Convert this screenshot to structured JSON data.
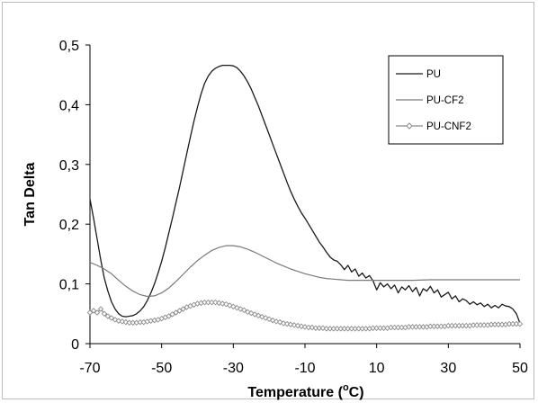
{
  "chart_data": {
    "type": "line",
    "xlabel": "Temperature",
    "xlabel_unit": "C",
    "xlabel_unit_sup": "o",
    "ylabel": "Tan Delta",
    "xlim": [
      -70,
      50
    ],
    "ylim": [
      0,
      0.5
    ],
    "x_ticks": [
      "-70",
      "-50",
      "-30",
      "-10",
      "10",
      "30",
      "50"
    ],
    "x_tick_values": [
      -70,
      -50,
      -30,
      -10,
      10,
      30,
      50
    ],
    "y_ticks": [
      "0",
      "0,1",
      "0,2",
      "0,3",
      "0,4",
      "0,5"
    ],
    "y_tick_values": [
      0,
      0.1,
      0.2,
      0.3,
      0.4,
      0.5
    ],
    "grid": false,
    "legend_position": "top-right",
    "series": [
      {
        "name": "PU",
        "color": "#1a1a1a",
        "marker": "none",
        "x": [
          -70,
          -69,
          -68,
          -67,
          -66,
          -65,
          -64,
          -63,
          -62,
          -61,
          -60,
          -59,
          -58,
          -57,
          -56,
          -55,
          -54,
          -53,
          -52,
          -51,
          -50,
          -49,
          -48,
          -47,
          -46,
          -45,
          -44,
          -43,
          -42,
          -41,
          -40,
          -39,
          -38,
          -37,
          -36,
          -35,
          -34,
          -33,
          -32,
          -31,
          -30,
          -29,
          -28,
          -27,
          -26,
          -25,
          -24,
          -23,
          -22,
          -21,
          -20,
          -19,
          -18,
          -17,
          -16,
          -15,
          -14,
          -13,
          -12,
          -11,
          -10,
          -9,
          -8,
          -7,
          -6,
          -5,
          -4,
          -3,
          -2,
          -1,
          0,
          1,
          2,
          3,
          4,
          5,
          6,
          7,
          8,
          9,
          10,
          11,
          12,
          13,
          14,
          15,
          16,
          17,
          18,
          19,
          20,
          21,
          22,
          23,
          24,
          25,
          26,
          27,
          28,
          29,
          30,
          31,
          32,
          33,
          34,
          35,
          36,
          37,
          38,
          39,
          40,
          41,
          42,
          43,
          44,
          45,
          46,
          47,
          48,
          49,
          50
        ],
        "y": [
          0.242,
          0.21,
          0.175,
          0.14,
          0.11,
          0.088,
          0.07,
          0.058,
          0.05,
          0.046,
          0.045,
          0.046,
          0.047,
          0.05,
          0.055,
          0.062,
          0.072,
          0.085,
          0.1,
          0.118,
          0.138,
          0.16,
          0.185,
          0.21,
          0.236,
          0.262,
          0.29,
          0.318,
          0.345,
          0.372,
          0.396,
          0.418,
          0.436,
          0.448,
          0.456,
          0.461,
          0.464,
          0.466,
          0.466,
          0.466,
          0.465,
          0.462,
          0.456,
          0.448,
          0.438,
          0.426,
          0.412,
          0.398,
          0.382,
          0.366,
          0.35,
          0.334,
          0.318,
          0.302,
          0.286,
          0.27,
          0.255,
          0.242,
          0.23,
          0.219,
          0.21,
          0.2,
          0.19,
          0.18,
          0.17,
          0.162,
          0.153,
          0.145,
          0.14,
          0.138,
          0.132,
          0.124,
          0.131,
          0.12,
          0.125,
          0.113,
          0.118,
          0.11,
          0.114,
          0.105,
          0.09,
          0.102,
          0.095,
          0.1,
          0.092,
          0.098,
          0.085,
          0.095,
          0.09,
          0.097,
          0.087,
          0.094,
          0.08,
          0.092,
          0.088,
          0.096,
          0.085,
          0.09,
          0.078,
          0.082,
          0.086,
          0.075,
          0.08,
          0.07,
          0.075,
          0.072,
          0.066,
          0.07,
          0.065,
          0.068,
          0.062,
          0.066,
          0.06,
          0.064,
          0.06,
          0.066,
          0.063,
          0.062,
          0.058,
          0.05,
          0.034
        ]
      },
      {
        "name": "PU-CF2",
        "color": "#7a7a7a",
        "marker": "none",
        "x": [
          -70,
          -68,
          -66,
          -64,
          -62,
          -60,
          -58,
          -56,
          -54,
          -52,
          -50,
          -48,
          -46,
          -44,
          -42,
          -40,
          -38,
          -36,
          -34,
          -32,
          -30,
          -28,
          -26,
          -24,
          -22,
          -20,
          -18,
          -16,
          -14,
          -12,
          -10,
          -8,
          -6,
          -4,
          -2,
          0,
          2,
          4,
          6,
          8,
          10,
          15,
          20,
          25,
          30,
          35,
          40,
          45,
          50
        ],
        "y": [
          0.136,
          0.131,
          0.125,
          0.117,
          0.106,
          0.096,
          0.088,
          0.082,
          0.079,
          0.08,
          0.085,
          0.093,
          0.104,
          0.116,
          0.128,
          0.139,
          0.148,
          0.156,
          0.161,
          0.164,
          0.164,
          0.162,
          0.158,
          0.153,
          0.147,
          0.141,
          0.135,
          0.13,
          0.125,
          0.121,
          0.117,
          0.114,
          0.111,
          0.109,
          0.108,
          0.107,
          0.106,
          0.106,
          0.106,
          0.106,
          0.106,
          0.106,
          0.106,
          0.107,
          0.107,
          0.107,
          0.107,
          0.107,
          0.107
        ]
      },
      {
        "name": "PU-CNF2",
        "color": "#8a8a8a",
        "marker": "diamond",
        "x": [
          -70,
          -69,
          -68,
          -67,
          -66,
          -65,
          -64,
          -63,
          -62,
          -61,
          -60,
          -59,
          -58,
          -57,
          -56,
          -55,
          -54,
          -53,
          -52,
          -51,
          -50,
          -49,
          -48,
          -47,
          -46,
          -45,
          -44,
          -43,
          -42,
          -41,
          -40,
          -39,
          -38,
          -37,
          -36,
          -35,
          -34,
          -33,
          -32,
          -31,
          -30,
          -29,
          -28,
          -27,
          -26,
          -25,
          -24,
          -23,
          -22,
          -21,
          -20,
          -19,
          -18,
          -17,
          -16,
          -15,
          -14,
          -13,
          -12,
          -11,
          -10,
          -9,
          -8,
          -7,
          -6,
          -5,
          -4,
          -3,
          -2,
          -1,
          0,
          1,
          2,
          3,
          4,
          5,
          6,
          7,
          8,
          9,
          10,
          11,
          12,
          13,
          14,
          15,
          16,
          17,
          18,
          19,
          20,
          21,
          22,
          23,
          24,
          25,
          26,
          27,
          28,
          29,
          30,
          31,
          32,
          33,
          34,
          35,
          36,
          37,
          38,
          39,
          40,
          41,
          42,
          43,
          44,
          45,
          46,
          47,
          48,
          49,
          50
        ],
        "y": [
          0.052,
          0.055,
          0.052,
          0.058,
          0.05,
          0.046,
          0.043,
          0.04,
          0.038,
          0.037,
          0.036,
          0.035,
          0.035,
          0.035,
          0.036,
          0.036,
          0.037,
          0.038,
          0.039,
          0.04,
          0.042,
          0.044,
          0.046,
          0.049,
          0.052,
          0.055,
          0.058,
          0.061,
          0.063,
          0.065,
          0.067,
          0.068,
          0.069,
          0.069,
          0.069,
          0.069,
          0.068,
          0.067,
          0.066,
          0.064,
          0.062,
          0.06,
          0.058,
          0.056,
          0.053,
          0.051,
          0.049,
          0.047,
          0.045,
          0.043,
          0.041,
          0.039,
          0.037,
          0.036,
          0.034,
          0.033,
          0.032,
          0.031,
          0.03,
          0.029,
          0.028,
          0.027,
          0.027,
          0.026,
          0.026,
          0.026,
          0.025,
          0.025,
          0.025,
          0.025,
          0.025,
          0.025,
          0.025,
          0.025,
          0.025,
          0.025,
          0.025,
          0.025,
          0.025,
          0.026,
          0.026,
          0.026,
          0.026,
          0.026,
          0.027,
          0.027,
          0.027,
          0.027,
          0.027,
          0.028,
          0.028,
          0.028,
          0.028,
          0.028,
          0.028,
          0.029,
          0.029,
          0.029,
          0.029,
          0.029,
          0.03,
          0.03,
          0.03,
          0.03,
          0.03,
          0.03,
          0.03,
          0.031,
          0.031,
          0.031,
          0.031,
          0.031,
          0.032,
          0.032,
          0.032,
          0.032,
          0.032,
          0.033,
          0.033,
          0.033,
          0.033
        ]
      }
    ]
  }
}
